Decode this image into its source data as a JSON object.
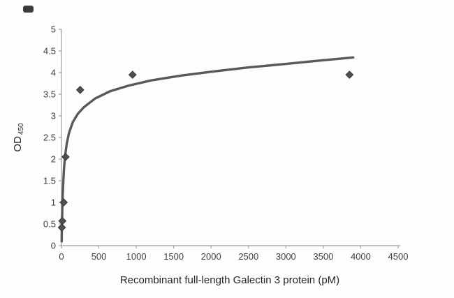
{
  "colors": {
    "background": "#fdfdfd",
    "axis": "#a0a0a0",
    "tick_text": "#3d3d3d",
    "label_text": "#262626",
    "curve": "#595959",
    "marker": "#4f4f4f",
    "marker_edge": "#3a3a3a"
  },
  "chart_data": {
    "type": "scatter",
    "title": "",
    "xlabel": "Recombinant full-length Galectin 3 protein (pM)",
    "ylabel": "OD",
    "ylabel_subscript": "450",
    "xlim": [
      0,
      4500
    ],
    "ylim": [
      0,
      5
    ],
    "grid": false,
    "legend": false,
    "x_ticks": [
      0,
      500,
      1000,
      1500,
      2000,
      2500,
      3000,
      3500,
      4000,
      4500
    ],
    "y_ticks": [
      0,
      0.5,
      1,
      1.5,
      2,
      2.5,
      3,
      3.5,
      4,
      4.5,
      5
    ],
    "points": [
      {
        "x": 5,
        "y": 0.42
      },
      {
        "x": 12,
        "y": 0.57
      },
      {
        "x": 30,
        "y": 1.0
      },
      {
        "x": 55,
        "y": 2.05
      },
      {
        "x": 250,
        "y": 3.6
      },
      {
        "x": 950,
        "y": 3.95
      },
      {
        "x": 3850,
        "y": 3.95
      }
    ],
    "fit_curve": {
      "type": "saturation-binding-fit",
      "points": [
        [
          3,
          0.1
        ],
        [
          5,
          0.35
        ],
        [
          8,
          0.6
        ],
        [
          12,
          0.9
        ],
        [
          18,
          1.2
        ],
        [
          25,
          1.5
        ],
        [
          35,
          1.8
        ],
        [
          50,
          2.1
        ],
        [
          70,
          2.35
        ],
        [
          100,
          2.6
        ],
        [
          150,
          2.85
        ],
        [
          220,
          3.05
        ],
        [
          300,
          3.2
        ],
        [
          450,
          3.4
        ],
        [
          650,
          3.57
        ],
        [
          900,
          3.7
        ],
        [
          1200,
          3.82
        ],
        [
          1600,
          3.93
        ],
        [
          2000,
          4.02
        ],
        [
          2500,
          4.12
        ],
        [
          3000,
          4.2
        ],
        [
          3400,
          4.27
        ],
        [
          3900,
          4.35
        ]
      ]
    }
  }
}
